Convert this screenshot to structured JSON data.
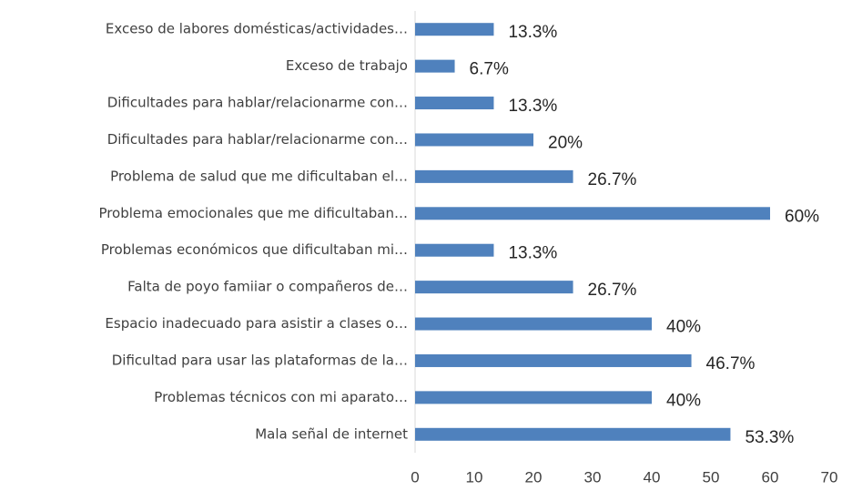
{
  "chart_data": {
    "type": "barh",
    "categories": [
      "Exceso de labores domésticas/actividades…",
      "Exceso de trabajo",
      "Dificultades para hablar/relacionarme con…",
      "Dificultades para hablar/relacionarme con…",
      "Problema de salud que me dificultaban el…",
      "Problema emocionales que me dificultaban…",
      "Problemas económicos que dificultaban mi…",
      "Falta de poyo famiiar o compañeros de…",
      "Espacio inadecuado para asistir a clases o…",
      "Dificultad para usar las plataformas de la…",
      "Problemas técnicos con mi aparato…",
      "Mala señal de internet"
    ],
    "values": [
      13.3,
      6.7,
      13.3,
      20,
      26.7,
      60,
      13.3,
      26.7,
      40,
      46.7,
      40,
      53.3
    ],
    "value_labels": [
      "13.3%",
      "6.7%",
      "13.3%",
      "20%",
      "26.7%",
      "60%",
      "13.3%",
      "26.7%",
      "40%",
      "46.7%",
      "40%",
      "53.3%"
    ],
    "color": "#4f81bd",
    "xlim": [
      0,
      70
    ],
    "xticks": [
      0,
      10,
      20,
      30,
      40,
      50,
      60,
      70
    ],
    "grid": false
  }
}
